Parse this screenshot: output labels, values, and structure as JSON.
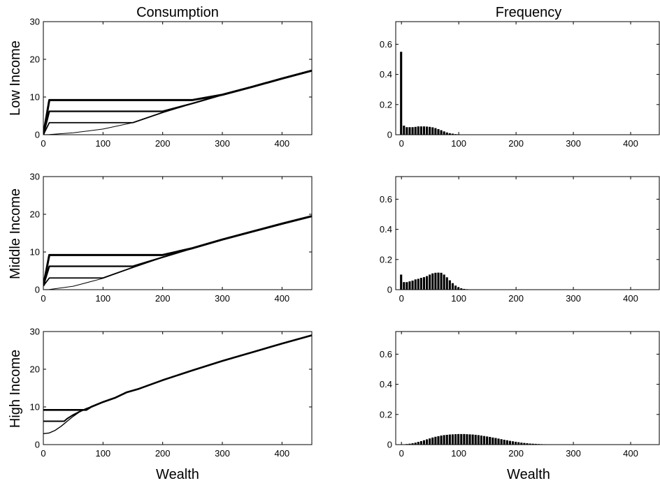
{
  "titles": {
    "left": "Consumption",
    "right": "Frequency"
  },
  "rows": [
    {
      "label": "Low Income"
    },
    {
      "label": "Middle Income"
    },
    {
      "label": "High Income"
    }
  ],
  "xlabels": {
    "left": "Wealth",
    "right": "Wealth"
  },
  "chart_data": [
    {
      "type": "line",
      "title": "Consumption",
      "ylabel": "Low Income",
      "xlabel": "",
      "xlim": [
        0,
        450
      ],
      "ylim": [
        0,
        30
      ],
      "xticks": [
        0,
        100,
        200,
        300,
        400
      ],
      "yticks": [
        0,
        10,
        20,
        30
      ],
      "series": [
        {
          "width": 1,
          "x": [
            0,
            10,
            50,
            100,
            150,
            200,
            250,
            300,
            350,
            400,
            450
          ],
          "y": [
            0,
            0.05,
            0.5,
            1.5,
            3.2,
            5.9,
            8.3,
            10.6,
            12.7,
            14.9,
            17.0
          ]
        },
        {
          "width": 1.8,
          "x": [
            0,
            10,
            150,
            200,
            250,
            300,
            350,
            400,
            450
          ],
          "y": [
            0,
            3.2,
            3.2,
            5.9,
            8.3,
            10.6,
            12.7,
            14.9,
            17.0
          ]
        },
        {
          "width": 2.3,
          "x": [
            0,
            10,
            200,
            250,
            300,
            350,
            400,
            450
          ],
          "y": [
            0,
            6.2,
            6.2,
            8.3,
            10.6,
            12.7,
            14.9,
            17.0
          ]
        },
        {
          "width": 3,
          "x": [
            0,
            10,
            250,
            300,
            350,
            400,
            450
          ],
          "y": [
            0,
            9.2,
            9.2,
            10.6,
            12.7,
            14.9,
            17.0
          ]
        }
      ]
    },
    {
      "type": "bar",
      "title": "Frequency",
      "xlim": [
        -10,
        450
      ],
      "ylim": [
        0,
        0.75
      ],
      "xticks": [
        0,
        100,
        200,
        300,
        400
      ],
      "yticks": [
        0,
        0.2,
        0.4,
        0.6
      ],
      "bin_width": 5,
      "x": [
        0,
        5,
        10,
        15,
        20,
        25,
        30,
        35,
        40,
        45,
        50,
        55,
        60,
        65,
        70,
        75,
        80,
        85,
        90,
        95,
        100,
        105,
        110,
        115,
        120,
        125,
        130
      ],
      "values": [
        0.55,
        0.06,
        0.05,
        0.05,
        0.05,
        0.052,
        0.055,
        0.055,
        0.055,
        0.054,
        0.052,
        0.049,
        0.044,
        0.037,
        0.03,
        0.022,
        0.015,
        0.01,
        0.007,
        0.004,
        0.003,
        0.002,
        0.001,
        0.001,
        0.0005,
        0.0003,
        0.0002
      ]
    },
    {
      "type": "line",
      "title": "",
      "ylabel": "Middle Income",
      "xlabel": "",
      "xlim": [
        0,
        450
      ],
      "ylim": [
        0,
        30
      ],
      "xticks": [
        0,
        100,
        200,
        300,
        400
      ],
      "yticks": [
        0,
        10,
        20,
        30
      ],
      "series": [
        {
          "width": 1,
          "x": [
            0,
            10,
            50,
            100,
            150,
            200,
            250,
            300,
            350,
            400,
            450
          ],
          "y": [
            0,
            0.05,
            0.9,
            3.0,
            5.9,
            8.6,
            11.0,
            13.3,
            15.4,
            17.5,
            19.5
          ]
        },
        {
          "width": 1.8,
          "x": [
            0,
            10,
            100,
            150,
            200,
            250,
            300,
            350,
            400,
            450
          ],
          "y": [
            1.0,
            3.1,
            3.1,
            5.9,
            8.6,
            11.0,
            13.3,
            15.4,
            17.5,
            19.5
          ]
        },
        {
          "width": 2.3,
          "x": [
            0,
            10,
            150,
            200,
            250,
            300,
            350,
            400,
            450
          ],
          "y": [
            1.0,
            6.2,
            6.2,
            8.6,
            11.0,
            13.3,
            15.4,
            17.5,
            19.5
          ]
        },
        {
          "width": 3,
          "x": [
            0,
            10,
            200,
            250,
            300,
            350,
            400,
            450
          ],
          "y": [
            1.0,
            9.2,
            9.2,
            11.0,
            13.3,
            15.4,
            17.5,
            19.5
          ]
        }
      ]
    },
    {
      "type": "bar",
      "title": "",
      "xlim": [
        -10,
        450
      ],
      "ylim": [
        0,
        0.75
      ],
      "xticks": [
        0,
        100,
        200,
        300,
        400
      ],
      "yticks": [
        0,
        0.2,
        0.4,
        0.6
      ],
      "bin_width": 5,
      "x": [
        0,
        5,
        10,
        15,
        20,
        25,
        30,
        35,
        40,
        45,
        50,
        55,
        60,
        65,
        70,
        75,
        80,
        85,
        90,
        95,
        100,
        105,
        110,
        115,
        120,
        125,
        130,
        135,
        140
      ],
      "values": [
        0.1,
        0.05,
        0.05,
        0.055,
        0.06,
        0.068,
        0.072,
        0.078,
        0.083,
        0.09,
        0.1,
        0.108,
        0.112,
        0.113,
        0.112,
        0.1,
        0.082,
        0.062,
        0.043,
        0.027,
        0.016,
        0.009,
        0.005,
        0.003,
        0.002,
        0.001,
        0.0005,
        0.0003,
        0.0002
      ]
    },
    {
      "type": "line",
      "title": "",
      "ylabel": "High Income",
      "xlabel": "Wealth",
      "xlim": [
        0,
        450
      ],
      "ylim": [
        0,
        30
      ],
      "xticks": [
        0,
        100,
        200,
        300,
        400
      ],
      "yticks": [
        0,
        10,
        20,
        30
      ],
      "series": [
        {
          "width": 1.4,
          "x": [
            0,
            10,
            20,
            30,
            40,
            50,
            60,
            70,
            80,
            100,
            120,
            140,
            160,
            200,
            250,
            300,
            350,
            400,
            450
          ],
          "y": [
            2.9,
            3.1,
            3.8,
            4.9,
            6.2,
            7.5,
            8.6,
            9.4,
            10.0,
            11.3,
            12.4,
            13.9,
            14.8,
            17.1,
            19.7,
            22.2,
            24.5,
            26.8,
            29.0
          ]
        },
        {
          "width": 2,
          "x": [
            0,
            35,
            40,
            50,
            60,
            70,
            80,
            100,
            120,
            140,
            160,
            200,
            250,
            300,
            350,
            400,
            450
          ],
          "y": [
            6.2,
            6.2,
            6.9,
            7.9,
            8.7,
            9.4,
            10.0,
            11.3,
            12.4,
            13.9,
            14.8,
            17.1,
            19.7,
            22.2,
            24.5,
            26.8,
            29.0
          ]
        },
        {
          "width": 2.6,
          "x": [
            0,
            72,
            80,
            100,
            120,
            140,
            160,
            200,
            250,
            300,
            350,
            400,
            450
          ],
          "y": [
            9.2,
            9.2,
            10.0,
            11.3,
            12.4,
            13.9,
            14.8,
            17.1,
            19.7,
            22.2,
            24.5,
            26.8,
            29.0
          ]
        }
      ]
    },
    {
      "type": "bar",
      "title": "",
      "xlabel": "Wealth",
      "xlim": [
        -10,
        450
      ],
      "ylim": [
        0,
        0.75
      ],
      "xticks": [
        0,
        100,
        200,
        300,
        400
      ],
      "yticks": [
        0,
        0.2,
        0.4,
        0.6
      ],
      "bin_width": 5,
      "x": [
        5,
        10,
        15,
        20,
        25,
        30,
        35,
        40,
        45,
        50,
        55,
        60,
        65,
        70,
        75,
        80,
        85,
        90,
        95,
        100,
        105,
        110,
        115,
        120,
        125,
        130,
        135,
        140,
        145,
        150,
        155,
        160,
        165,
        170,
        175,
        180,
        185,
        190,
        195,
        200,
        205,
        210,
        215,
        220,
        225,
        230,
        235,
        240,
        245,
        250,
        255,
        260,
        265,
        270,
        275,
        280,
        285,
        290,
        295,
        300
      ],
      "values": [
        0.002,
        0.004,
        0.006,
        0.009,
        0.013,
        0.018,
        0.023,
        0.029,
        0.035,
        0.041,
        0.047,
        0.052,
        0.056,
        0.06,
        0.063,
        0.065,
        0.067,
        0.068,
        0.069,
        0.07,
        0.07,
        0.07,
        0.069,
        0.068,
        0.067,
        0.065,
        0.063,
        0.06,
        0.057,
        0.054,
        0.051,
        0.047,
        0.044,
        0.04,
        0.036,
        0.032,
        0.029,
        0.025,
        0.022,
        0.019,
        0.016,
        0.013,
        0.011,
        0.009,
        0.007,
        0.006,
        0.005,
        0.004,
        0.003,
        0.0025,
        0.002,
        0.0015,
        0.0012,
        0.001,
        0.0008,
        0.0006,
        0.0005,
        0.0004,
        0.0003,
        0.0002
      ]
    }
  ]
}
